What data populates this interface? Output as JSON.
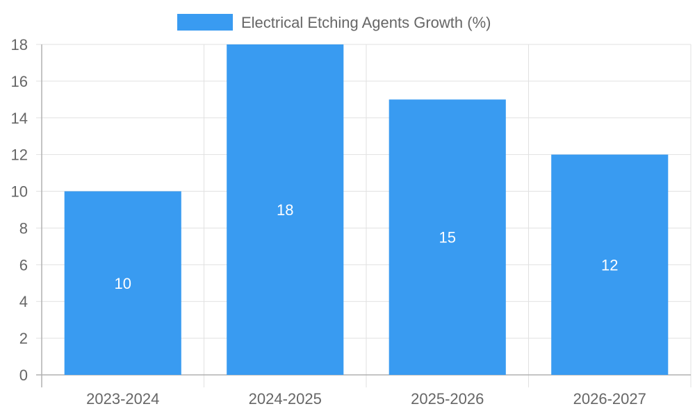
{
  "chart_data": {
    "type": "bar",
    "categories": [
      "2023-2024",
      "2024-2025",
      "2025-2026",
      "2026-2027"
    ],
    "series": [
      {
        "name": "Electrical Etching Agents Growth (%)",
        "values": [
          10,
          18,
          15,
          12
        ],
        "color": "#399BF1"
      }
    ],
    "ylim": [
      0,
      18
    ],
    "yticks": [
      0,
      2,
      4,
      6,
      8,
      10,
      12,
      14,
      16,
      18
    ],
    "grid": true,
    "legend_position": "top-center",
    "data_labels": true,
    "colors": {
      "grid": "#e1e1e1",
      "axis": "#b0b0b0",
      "tick_text": "#666666",
      "legend_text": "#666666",
      "data_label_text": "#ffffff"
    }
  }
}
